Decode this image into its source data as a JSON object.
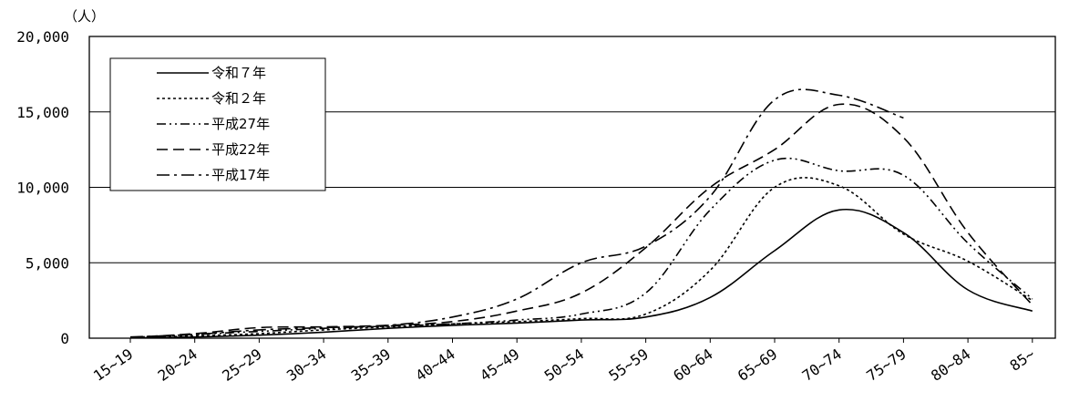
{
  "chart_data": {
    "type": "line",
    "title": "",
    "xlabel": "",
    "ylabel": "",
    "y_unit": "（人）",
    "ylim": [
      0,
      20000
    ],
    "y_ticks": [
      "0",
      "5,000",
      "10,000",
      "15,000",
      "20,000"
    ],
    "y_tick_values": [
      0,
      5000,
      10000,
      15000,
      20000
    ],
    "grid": "horizontal",
    "legend_position": "top-left",
    "categories": [
      "15~19",
      "20~24",
      "25~29",
      "30~34",
      "35~39",
      "40~44",
      "45~49",
      "50~54",
      "55~59",
      "60~64",
      "65~69",
      "70~74",
      "75~79",
      "80~84",
      "85~"
    ],
    "series": [
      {
        "name": "令和７年",
        "dash": "solid",
        "values": [
          20,
          80,
          200,
          400,
          650,
          850,
          1000,
          1200,
          1400,
          2700,
          5800,
          8500,
          7000,
          3200,
          1800
        ]
      },
      {
        "name": "令和２年",
        "dash": "dot",
        "values": [
          30,
          150,
          300,
          550,
          750,
          950,
          1100,
          1300,
          1600,
          4500,
          10000,
          10100,
          6900,
          5100,
          2500
        ]
      },
      {
        "name": "平成27年",
        "dash": "dashdotdot",
        "values": [
          50,
          250,
          450,
          650,
          800,
          950,
          1200,
          1600,
          3000,
          8500,
          11800,
          11100,
          10800,
          6300,
          2600
        ]
      },
      {
        "name": "平成22年",
        "dash": "dash",
        "values": [
          50,
          300,
          700,
          750,
          850,
          1100,
          1800,
          3000,
          6000,
          10000,
          12500,
          15500,
          13300,
          7000,
          2200
        ]
      },
      {
        "name": "平成17年",
        "dash": "dashdot",
        "values": [
          80,
          250,
          550,
          700,
          850,
          1400,
          2600,
          5000,
          6100,
          9400,
          15800,
          16100,
          14600,
          null,
          null
        ]
      }
    ]
  }
}
